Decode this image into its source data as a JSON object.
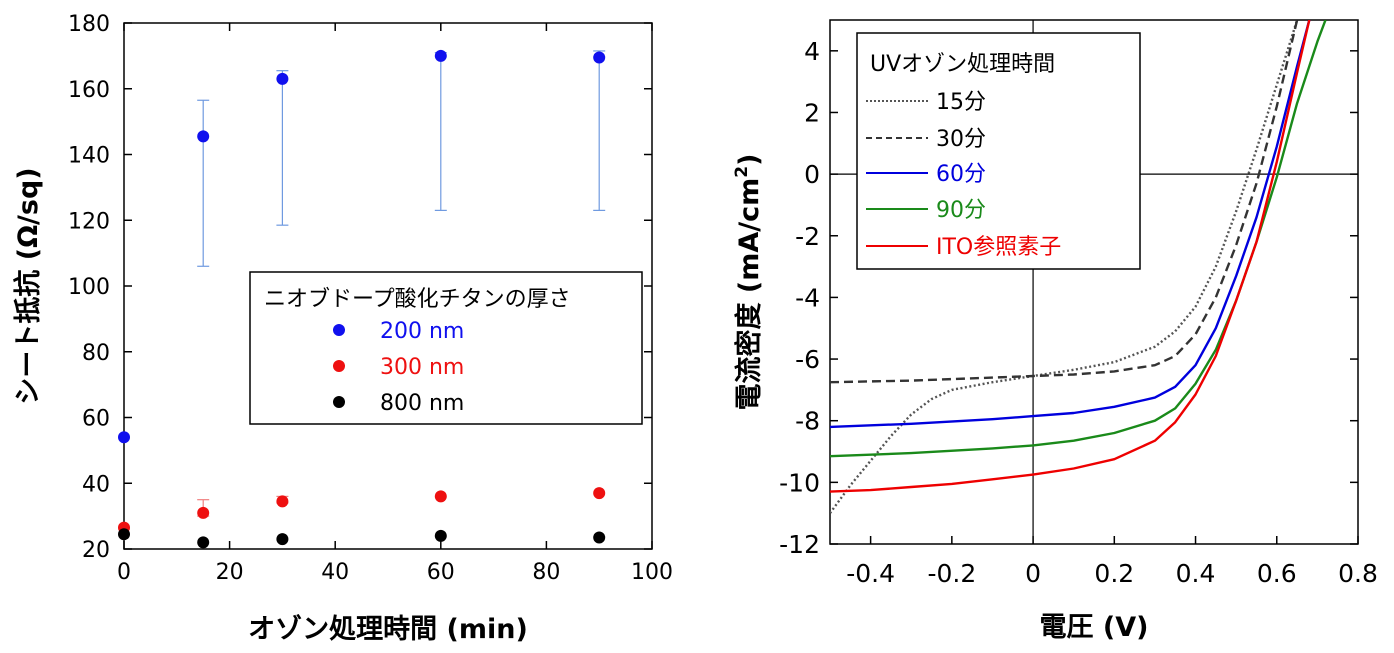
{
  "chart_data": [
    {
      "type": "scatter",
      "xlabel": "オゾン処理時間 (min)",
      "ylabel": "シート抵抗 (Ω/sq)",
      "xlim": [
        0,
        100
      ],
      "ylim": [
        20,
        180
      ],
      "xticks": [
        "0",
        "20",
        "40",
        "60",
        "80",
        "100"
      ],
      "yticks": [
        "20",
        "40",
        "60",
        "80",
        "100",
        "120",
        "140",
        "160",
        "180"
      ],
      "legend": {
        "title": "ニオブドープ酸化チタンの厚さ",
        "placement": "center-right",
        "entries": [
          "200 nm",
          "300 nm",
          "800 nm"
        ]
      },
      "series": [
        {
          "name": "200 nm",
          "color": "#1010ee",
          "points": [
            {
              "x": 0,
              "y": 54
            },
            {
              "x": 15,
              "y": 145.5,
              "err_low": 106,
              "err_high": 156.5
            },
            {
              "x": 30,
              "y": 163,
              "err_low": 118.5,
              "err_high": 165.5
            },
            {
              "x": 60,
              "y": 170,
              "err_low": 123,
              "err_high": 171
            },
            {
              "x": 90,
              "y": 169.5,
              "err_low": 123,
              "err_high": 171.5
            }
          ]
        },
        {
          "name": "300 nm",
          "color": "#ee1010",
          "points": [
            {
              "x": 0,
              "y": 26.5
            },
            {
              "x": 15,
              "y": 31,
              "err_low": 30,
              "err_high": 35
            },
            {
              "x": 30,
              "y": 34.5,
              "err_low": 34,
              "err_high": 36
            },
            {
              "x": 60,
              "y": 36
            },
            {
              "x": 90,
              "y": 37
            }
          ]
        },
        {
          "name": "800 nm",
          "color": "#000000",
          "points": [
            {
              "x": 0,
              "y": 24.5
            },
            {
              "x": 15,
              "y": 22
            },
            {
              "x": 30,
              "y": 23
            },
            {
              "x": 60,
              "y": 24
            },
            {
              "x": 90,
              "y": 23.5
            }
          ]
        }
      ]
    },
    {
      "type": "line",
      "xlabel": "電圧 (V)",
      "ylabel": "電流密度 (mA/cm²)",
      "ylabel_parts": {
        "main": "電流密度 (mA/cm",
        "sup": "2",
        "close": ")"
      },
      "xlim": [
        -0.5,
        0.8
      ],
      "ylim": [
        -12,
        5
      ],
      "xticks": [
        "-0.4",
        "-0.2",
        "0",
        "0.2",
        "0.4",
        "0.6",
        "0.8"
      ],
      "yticks": [
        "4",
        "2",
        "0",
        "-2",
        "-4",
        "-6",
        "-8",
        "-10",
        "-12"
      ],
      "legend": {
        "title": "UVオゾン処理時間",
        "placement": "top-left",
        "entries": [
          "15分",
          "30分",
          "60分",
          "90分",
          "ITO参照素子"
        ]
      },
      "series": [
        {
          "name": "15分",
          "color": "#555555",
          "style": "dotted",
          "x": [
            -0.5,
            -0.45,
            -0.4,
            -0.35,
            -0.3,
            -0.25,
            -0.2,
            -0.1,
            0.0,
            0.1,
            0.2,
            0.3,
            0.35,
            0.4,
            0.45,
            0.5,
            0.55,
            0.6,
            0.65
          ],
          "y": [
            -11.0,
            -10.1,
            -9.3,
            -8.5,
            -7.8,
            -7.3,
            -7.0,
            -6.75,
            -6.55,
            -6.35,
            -6.1,
            -5.6,
            -5.1,
            -4.3,
            -3.0,
            -1.2,
            0.8,
            2.9,
            5.0
          ]
        },
        {
          "name": "30分",
          "color": "#333333",
          "style": "dashed",
          "x": [
            -0.5,
            -0.3,
            -0.1,
            0.0,
            0.1,
            0.2,
            0.3,
            0.35,
            0.4,
            0.45,
            0.5,
            0.55,
            0.6,
            0.65
          ],
          "y": [
            -6.75,
            -6.7,
            -6.6,
            -6.55,
            -6.5,
            -6.4,
            -6.2,
            -5.9,
            -5.2,
            -4.0,
            -2.3,
            -0.3,
            2.2,
            5.0
          ]
        },
        {
          "name": "60分",
          "color": "#0000dd",
          "style": "solid",
          "x": [
            -0.5,
            -0.3,
            -0.1,
            0.0,
            0.1,
            0.2,
            0.3,
            0.35,
            0.4,
            0.45,
            0.5,
            0.55,
            0.6,
            0.65,
            0.68
          ],
          "y": [
            -8.2,
            -8.1,
            -7.95,
            -7.85,
            -7.75,
            -7.55,
            -7.25,
            -6.9,
            -6.2,
            -5.0,
            -3.3,
            -1.4,
            0.9,
            3.5,
            5.0
          ]
        },
        {
          "name": "90分",
          "color": "#1a8a1a",
          "style": "solid",
          "x": [
            -0.5,
            -0.3,
            -0.1,
            0.0,
            0.1,
            0.2,
            0.3,
            0.35,
            0.4,
            0.45,
            0.5,
            0.55,
            0.6,
            0.65,
            0.7,
            0.72
          ],
          "y": [
            -9.15,
            -9.05,
            -8.9,
            -8.8,
            -8.65,
            -8.4,
            -8.0,
            -7.6,
            -6.8,
            -5.7,
            -4.1,
            -2.2,
            -0.1,
            2.3,
            4.3,
            5.0
          ]
        },
        {
          "name": "ITO参照素子",
          "color": "#ee0000",
          "style": "solid",
          "x": [
            -0.5,
            -0.4,
            -0.3,
            -0.2,
            -0.1,
            0.0,
            0.1,
            0.2,
            0.3,
            0.35,
            0.4,
            0.45,
            0.5,
            0.55,
            0.6,
            0.65,
            0.68
          ],
          "y": [
            -10.3,
            -10.25,
            -10.15,
            -10.05,
            -9.9,
            -9.75,
            -9.55,
            -9.25,
            -8.65,
            -8.05,
            -7.15,
            -5.9,
            -4.1,
            -2.2,
            0.4,
            3.3,
            5.0
          ]
        }
      ]
    }
  ]
}
